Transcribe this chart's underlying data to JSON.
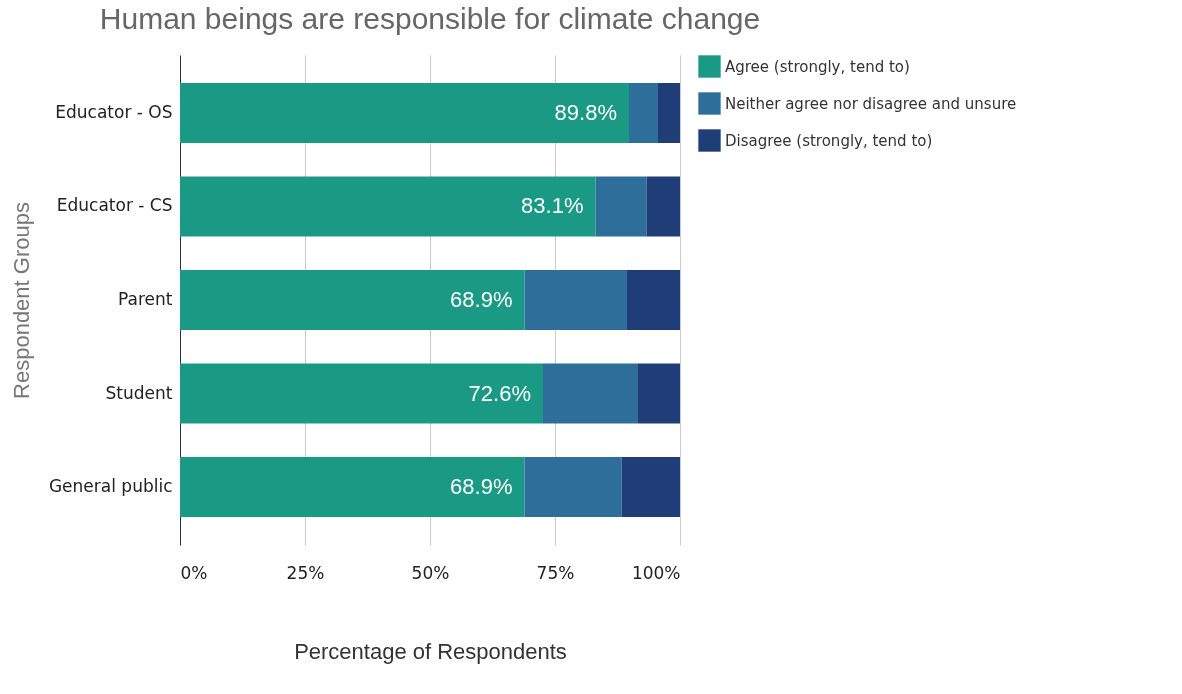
{
  "chart_data": {
    "type": "bar",
    "orientation": "horizontal",
    "stacked": true,
    "title": "Human beings are responsible for climate change",
    "xlabel": "Percentage of Respondents",
    "ylabel": "Respondent Groups",
    "categories": [
      "Educator - OS",
      "Educator - CS",
      "Parent",
      "Student",
      "General public"
    ],
    "series": [
      {
        "name": "Agree (strongly, tend to)",
        "color": "#1a9985",
        "values": [
          89.8,
          83.1,
          68.9,
          72.6,
          68.9
        ],
        "value_labels": [
          "89.8%",
          "83.1%",
          "68.9%",
          "72.6%",
          "68.9%"
        ]
      },
      {
        "name": "Neither agree nor disagree and unsure",
        "color": "#2e6e9a",
        "values": [
          5.8,
          10.2,
          20.5,
          19.0,
          19.4
        ]
      },
      {
        "name": "Disagree (strongly, tend to)",
        "color": "#1f3d77",
        "values": [
          4.4,
          6.7,
          10.6,
          8.4,
          11.7
        ]
      }
    ],
    "xlim": [
      0,
      100
    ],
    "xticks": [
      {
        "value": 0,
        "label": "0%"
      },
      {
        "value": 25,
        "label": "25%"
      },
      {
        "value": 50,
        "label": "50%"
      },
      {
        "value": 75,
        "label": "75%"
      },
      {
        "value": 100,
        "label": "100%"
      }
    ],
    "grid": "x",
    "legend": "top right"
  }
}
